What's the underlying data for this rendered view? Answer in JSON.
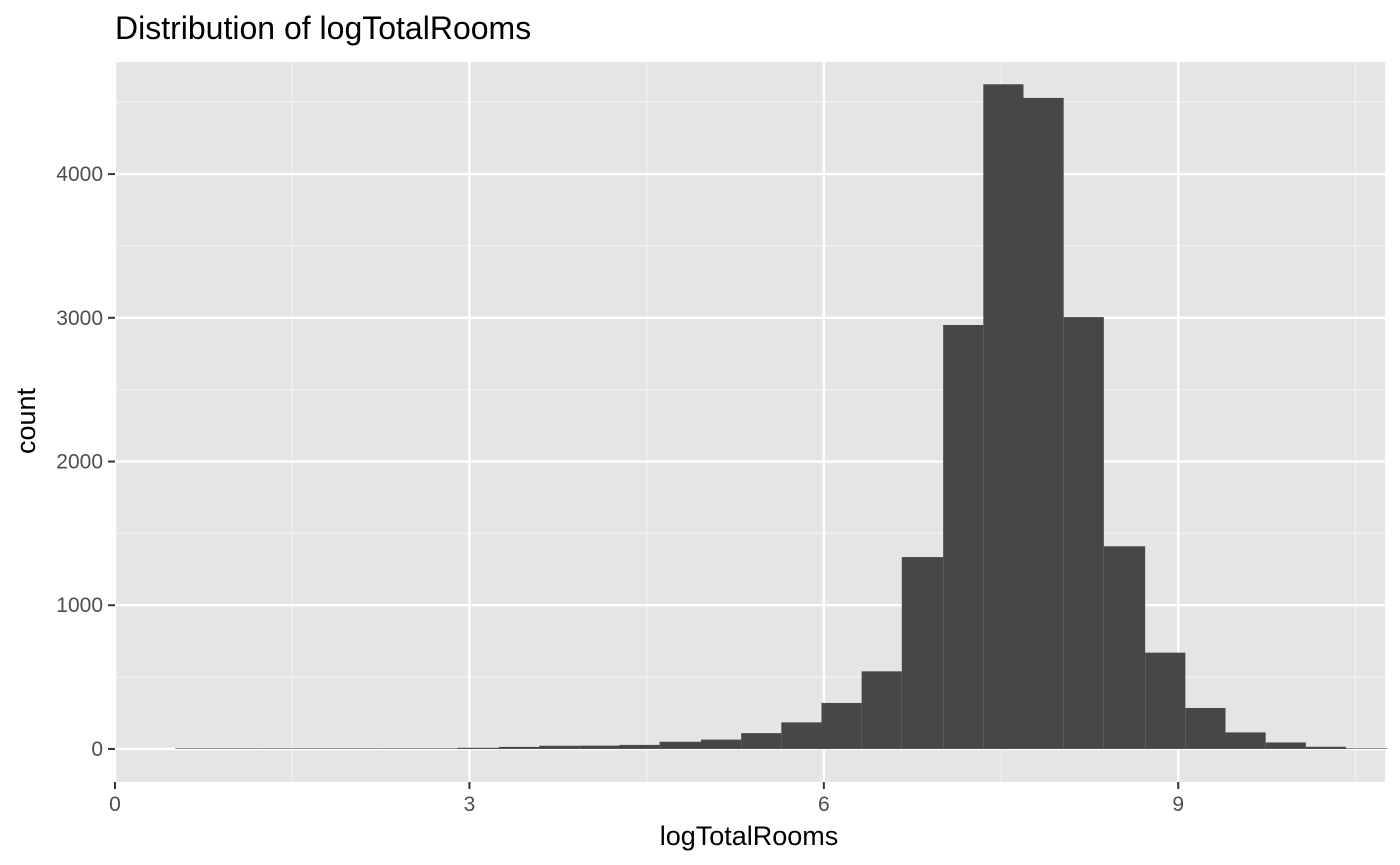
{
  "chart_data": {
    "type": "bar",
    "title": "Distribution of logTotalRooms",
    "xlabel": "logTotalRooms",
    "ylabel": "count",
    "xlim": [
      0,
      10.75
    ],
    "ylim": [
      -230,
      4780
    ],
    "x_ticks": [
      0,
      3,
      6,
      9
    ],
    "x_tick_labels": [
      "0",
      "3",
      "6",
      "9"
    ],
    "y_ticks": [
      0,
      1000,
      2000,
      3000,
      4000
    ],
    "y_tick_labels": [
      "0",
      "1000",
      "2000",
      "3000",
      "4000"
    ],
    "bin_width": 0.342,
    "bins": [
      {
        "x0": 0.51,
        "x1": 0.85,
        "count": 1
      },
      {
        "x0": 0.85,
        "x1": 1.2,
        "count": 0
      },
      {
        "x0": 1.2,
        "x1": 1.54,
        "count": 0
      },
      {
        "x0": 1.54,
        "x1": 1.88,
        "count": 1
      },
      {
        "x0": 1.88,
        "x1": 2.22,
        "count": 1
      },
      {
        "x0": 2.22,
        "x1": 2.56,
        "count": 2
      },
      {
        "x0": 2.56,
        "x1": 2.9,
        "count": 3
      },
      {
        "x0": 2.9,
        "x1": 3.25,
        "count": 8
      },
      {
        "x0": 3.25,
        "x1": 3.59,
        "count": 14
      },
      {
        "x0": 3.59,
        "x1": 3.93,
        "count": 22
      },
      {
        "x0": 3.93,
        "x1": 4.27,
        "count": 23
      },
      {
        "x0": 4.27,
        "x1": 4.61,
        "count": 28
      },
      {
        "x0": 4.61,
        "x1": 4.96,
        "count": 50
      },
      {
        "x0": 4.96,
        "x1": 5.3,
        "count": 65
      },
      {
        "x0": 5.3,
        "x1": 5.64,
        "count": 110
      },
      {
        "x0": 5.64,
        "x1": 5.98,
        "count": 185
      },
      {
        "x0": 5.98,
        "x1": 6.32,
        "count": 320
      },
      {
        "x0": 6.32,
        "x1": 6.66,
        "count": 540
      },
      {
        "x0": 6.66,
        "x1": 7.01,
        "count": 1335
      },
      {
        "x0": 7.01,
        "x1": 7.35,
        "count": 2950
      },
      {
        "x0": 7.35,
        "x1": 7.69,
        "count": 4625
      },
      {
        "x0": 7.69,
        "x1": 8.03,
        "count": 4530
      },
      {
        "x0": 8.03,
        "x1": 8.37,
        "count": 3005
      },
      {
        "x0": 8.37,
        "x1": 8.72,
        "count": 1410
      },
      {
        "x0": 8.72,
        "x1": 9.06,
        "count": 670
      },
      {
        "x0": 9.06,
        "x1": 9.4,
        "count": 285
      },
      {
        "x0": 9.4,
        "x1": 9.74,
        "count": 115
      },
      {
        "x0": 9.74,
        "x1": 10.08,
        "count": 45
      },
      {
        "x0": 10.08,
        "x1": 10.42,
        "count": 15
      },
      {
        "x0": 10.42,
        "x1": 10.77,
        "count": 3
      }
    ],
    "grid": true,
    "colors": {
      "bar_fill": "#474747",
      "panel_background": "#e5e5e5",
      "grid_major": "#ffffff",
      "grid_minor": "#f2f2f2",
      "tick_text": "#4d4d4d",
      "tick_mark": "#333333"
    }
  }
}
